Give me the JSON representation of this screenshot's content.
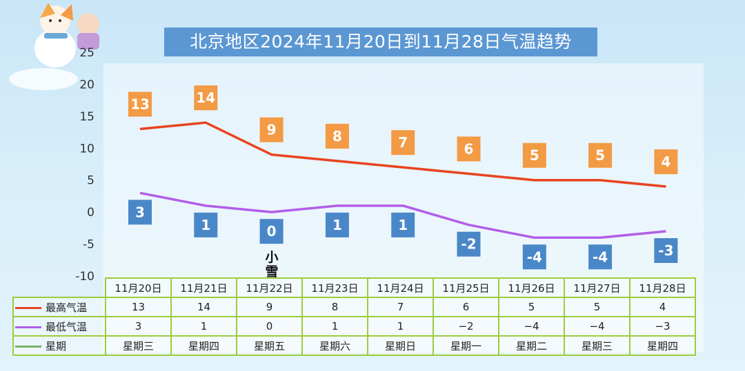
{
  "title": "北京地区2024年11月20日到11月28日气温趋势",
  "annotation": {
    "snow": "小雪"
  },
  "colors": {
    "high": "#e8431f",
    "low": "#b25ee8",
    "weekday": "#7ab06c",
    "high_label_bg": "#f39a45",
    "low_label_bg": "#4a87c8",
    "grid_border": "#9ccc3c",
    "title_bg": "#5b97d3"
  },
  "chart_data": {
    "type": "line",
    "title": "北京地区2024年11月20日到11月28日气温趋势",
    "categories": [
      "11月20日",
      "11月21日",
      "11月22日",
      "11月23日",
      "11月24日",
      "11月25日",
      "11月26日",
      "11月27日",
      "11月28日"
    ],
    "series": [
      {
        "name": "最高气温",
        "values": [
          13,
          14,
          9,
          8,
          7,
          6,
          5,
          5,
          4
        ]
      },
      {
        "name": "最低气温",
        "values": [
          3,
          1,
          0,
          1,
          1,
          -2,
          -4,
          -4,
          -3
        ]
      }
    ],
    "ylim": [
      -10,
      25
    ],
    "yticks": [
      25,
      20,
      15,
      10,
      5,
      0,
      -5,
      -10
    ],
    "grid": false,
    "legend": "table-bottom-left"
  },
  "table": {
    "rows": [
      {
        "label": "最高气温",
        "cells": [
          "13",
          "14",
          "9",
          "8",
          "7",
          "6",
          "5",
          "5",
          "4"
        ]
      },
      {
        "label": "最低气温",
        "cells": [
          "3",
          "1",
          "0",
          "1",
          "1",
          "−2",
          "−4",
          "−4",
          "−3"
        ]
      },
      {
        "label": "星期",
        "cells": [
          "星期三",
          "星期四",
          "星期五",
          "星期六",
          "星期日",
          "星期一",
          "星期二",
          "星期三",
          "星期四"
        ]
      }
    ]
  }
}
